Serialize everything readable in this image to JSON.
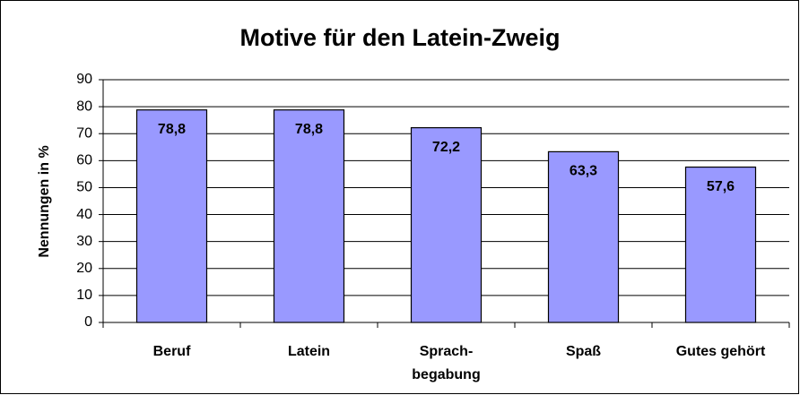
{
  "chart_data": {
    "type": "bar",
    "title": "Motive für den Latein-Zweig",
    "y_label": "Nennungen in %",
    "categories": [
      "Beruf",
      "Latein",
      "Sprach-\nbegabung",
      "Spaß",
      "Gutes gehört"
    ],
    "values": [
      78.8,
      78.8,
      72.2,
      63.3,
      57.6
    ],
    "value_labels": [
      "78,8",
      "78,8",
      "72,2",
      "63,3",
      "57,6"
    ],
    "color": "#9999ff",
    "ylim": [
      0,
      90
    ],
    "yticks": [
      0,
      10,
      20,
      30,
      40,
      50,
      60,
      70,
      80,
      90
    ],
    "grid": true
  }
}
